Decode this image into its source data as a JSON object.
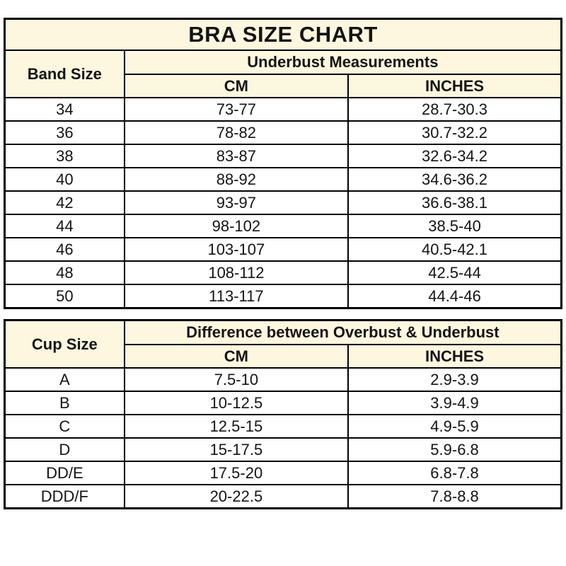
{
  "page": {
    "title": "BRA SIZE CHART"
  },
  "colors": {
    "header_bg": "#FDF7DF",
    "row_bg": "#FFFFFF",
    "border": "#000000",
    "text": "#141414"
  },
  "band_table": {
    "corner_header": "Band Size",
    "group_header": "Underbust Measurements",
    "columns": [
      "CM",
      "INCHES"
    ],
    "rows": [
      {
        "label": "34",
        "cm": "73-77",
        "inches": "28.7-30.3"
      },
      {
        "label": "36",
        "cm": "78-82",
        "inches": "30.7-32.2"
      },
      {
        "label": "38",
        "cm": "83-87",
        "inches": "32.6-34.2"
      },
      {
        "label": "40",
        "cm": "88-92",
        "inches": "34.6-36.2"
      },
      {
        "label": "42",
        "cm": "93-97",
        "inches": "36.6-38.1"
      },
      {
        "label": "44",
        "cm": "98-102",
        "inches": "38.5-40"
      },
      {
        "label": "46",
        "cm": "103-107",
        "inches": "40.5-42.1"
      },
      {
        "label": "48",
        "cm": "108-112",
        "inches": "42.5-44"
      },
      {
        "label": "50",
        "cm": "113-117",
        "inches": "44.4-46"
      }
    ]
  },
  "cup_table": {
    "corner_header": "Cup Size",
    "group_header": "Difference between Overbust & Underbust",
    "columns": [
      "CM",
      "INCHES"
    ],
    "rows": [
      {
        "label": "A",
        "cm": "7.5-10",
        "inches": "2.9-3.9"
      },
      {
        "label": "B",
        "cm": "10-12.5",
        "inches": "3.9-4.9"
      },
      {
        "label": "C",
        "cm": "12.5-15",
        "inches": "4.9-5.9"
      },
      {
        "label": "D",
        "cm": "15-17.5",
        "inches": "5.9-6.8"
      },
      {
        "label": "DD/E",
        "cm": "17.5-20",
        "inches": "6.8-7.8"
      },
      {
        "label": "DDD/F",
        "cm": "20-22.5",
        "inches": "7.8-8.8"
      }
    ]
  }
}
